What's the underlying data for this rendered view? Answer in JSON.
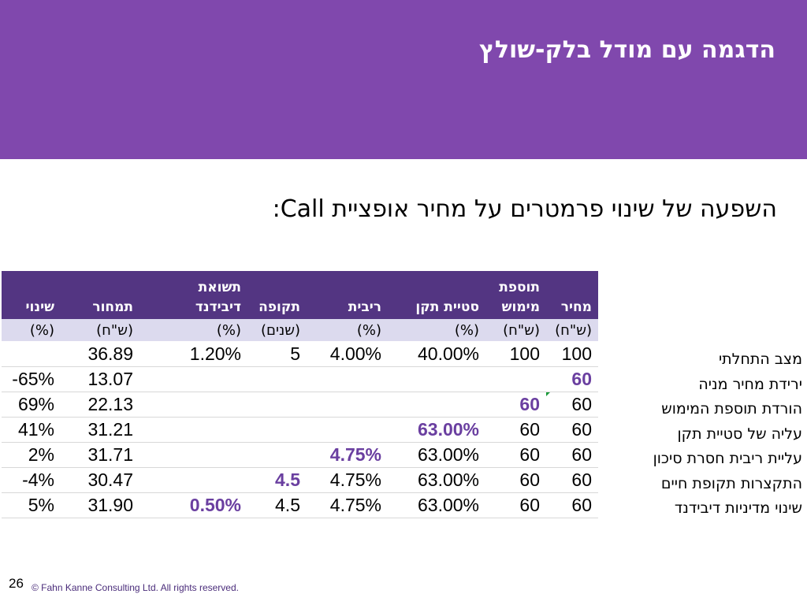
{
  "title": "הדגמה עם מודל בלק-שולץ",
  "subtitle": "השפעה של שינוי פרמטרים על מחיר אופציית Call:",
  "table": {
    "header_top": [
      "",
      "",
      "תשואת",
      "",
      "",
      "",
      "תוספת",
      ""
    ],
    "header_bottom": [
      "שינוי",
      "תמחור",
      "דיבידנד",
      "תקופה",
      "ריבית",
      "סטיית תקן",
      "מימוש",
      "מחיר"
    ],
    "units": [
      "(%)",
      "(ש\"ח)",
      "(%)",
      "(שנים)",
      "(%)",
      "(%)",
      "(ש\"ח)",
      "(ש\"ח)"
    ],
    "rows": [
      {
        "label": "מצב התחלתי",
        "cells": [
          "",
          "36.89",
          "1.20%",
          "5",
          "4.00%",
          "40.00%",
          "100",
          "100"
        ]
      },
      {
        "label": "ירידת מחיר מניה",
        "cells": [
          "-65%",
          "13.07",
          "",
          "",
          "",
          "",
          "",
          "60"
        ]
      },
      {
        "label": "הורדת תוספת המימוש",
        "cells": [
          "69%",
          "22.13",
          "",
          "",
          "",
          "",
          "60",
          "60"
        ]
      },
      {
        "label": "עליה של סטיית תקן",
        "cells": [
          "41%",
          "31.21",
          "",
          "",
          "",
          "63.00%",
          "60",
          "60"
        ]
      },
      {
        "label": "עליית ריבית חסרת סיכון",
        "cells": [
          "2%",
          "31.71",
          "",
          "",
          "4.75%",
          "63.00%",
          "60",
          "60"
        ]
      },
      {
        "label": "התקצרות תקופת חיים",
        "cells": [
          "-4%",
          "30.47",
          "",
          "4.5",
          "4.75%",
          "63.00%",
          "60",
          "60"
        ]
      },
      {
        "label": "שינוי מדיניות דיבידנד",
        "cells": [
          "5%",
          "31.90",
          "0.50%",
          "4.5",
          "4.75%",
          "63.00%",
          "60",
          "60"
        ]
      }
    ]
  },
  "page_number": "26",
  "copyright": "© Fahn Kanne Consulting Ltd. All rights reserved.",
  "colors": {
    "header_band": "#8048ad",
    "table_header": "#533582",
    "units_row": "#dcdaee",
    "highlight": "#6a3fa0",
    "comment_marker": "#1a9a3a"
  }
}
